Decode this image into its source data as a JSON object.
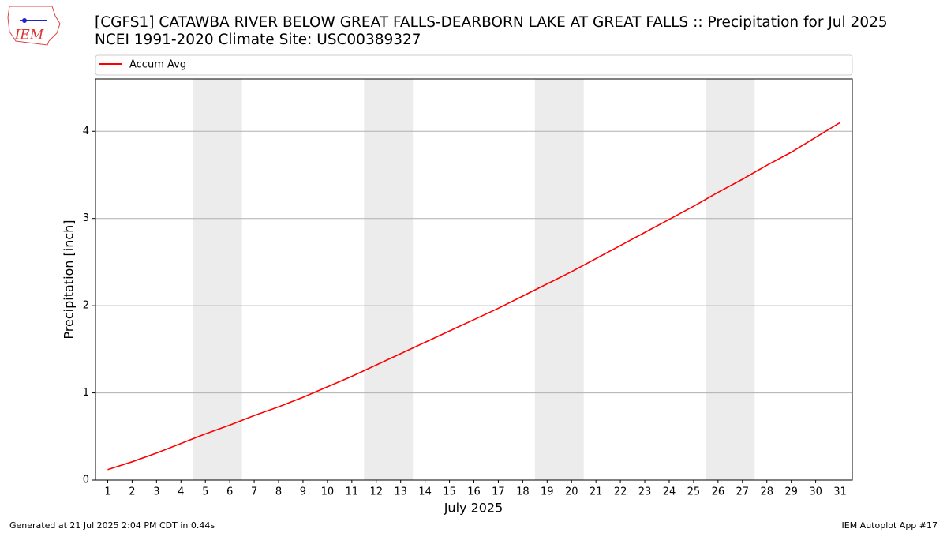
{
  "logo_text": "IEM",
  "chart_data": {
    "type": "line",
    "title": "[CGFS1] CATAWBA RIVER BELOW GREAT FALLS-DEARBORN LAKE AT GREAT FALLS :: Precipitation for Jul 2025",
    "subtitle": "NCEI 1991-2020 Climate Site: USC00389327",
    "x_label": "July 2025",
    "y_label": "Precipitation [inch]",
    "x": [
      1,
      2,
      3,
      4,
      5,
      6,
      7,
      8,
      9,
      10,
      11,
      12,
      13,
      14,
      15,
      16,
      17,
      18,
      19,
      20,
      21,
      22,
      23,
      24,
      25,
      26,
      27,
      28,
      29,
      30,
      31
    ],
    "series": [
      {
        "name": "Accum Avg",
        "color": "#ff0000",
        "values": [
          0.12,
          0.21,
          0.31,
          0.42,
          0.53,
          0.63,
          0.74,
          0.84,
          0.95,
          1.07,
          1.19,
          1.32,
          1.45,
          1.58,
          1.71,
          1.84,
          1.97,
          2.11,
          2.25,
          2.39,
          2.54,
          2.69,
          2.84,
          2.99,
          3.14,
          3.3,
          3.45,
          3.61,
          3.76,
          3.93,
          4.1
        ]
      }
    ],
    "xlim": [
      0.5,
      31.5
    ],
    "xticks": [
      1,
      2,
      3,
      4,
      5,
      6,
      7,
      8,
      9,
      10,
      11,
      12,
      13,
      14,
      15,
      16,
      17,
      18,
      19,
      20,
      21,
      22,
      23,
      24,
      25,
      26,
      27,
      28,
      29,
      30,
      31
    ],
    "ylim": [
      0,
      4.6
    ],
    "yticks": [
      0,
      1,
      2,
      3,
      4
    ],
    "grid": true,
    "shaded_spans": [
      [
        4.5,
        6.5
      ],
      [
        11.5,
        13.5
      ],
      [
        18.5,
        20.5
      ],
      [
        25.5,
        27.5
      ]
    ],
    "shade_color": "#ececec",
    "legend_position": "top"
  },
  "footer": {
    "left": "Generated at 21 Jul 2025 2:04 PM CDT in 0.44s",
    "right": "IEM Autoplot App #17"
  }
}
